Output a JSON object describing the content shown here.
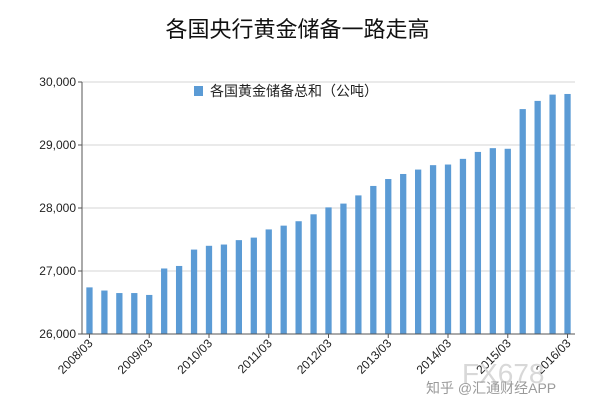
{
  "chart_data": {
    "type": "bar",
    "title": "各国央行黄金储备一路走高",
    "legend": {
      "label": "各国黄金储备总和（公吨）",
      "position": "top-left"
    },
    "ylim": [
      26000,
      30000
    ],
    "yticks": [
      26000,
      27000,
      28000,
      29000,
      30000
    ],
    "ytick_labels": [
      "26,000",
      "27,000",
      "28,000",
      "29,000",
      "30,000"
    ],
    "xtick_labels": [
      "2008/03",
      "2009/03",
      "2010/03",
      "2011/03",
      "2012/03",
      "2013/03",
      "2014/03",
      "2015/03",
      "2016/03"
    ],
    "xtick_every": 4,
    "bar_color": "#5b9bd5",
    "values": [
      26740,
      26690,
      26650,
      26650,
      26620,
      27040,
      27080,
      27340,
      27400,
      27420,
      27490,
      27530,
      27660,
      27720,
      27790,
      27900,
      28010,
      28070,
      28200,
      28350,
      28460,
      28540,
      28610,
      28680,
      28690,
      28780,
      28890,
      28950,
      28940,
      29570,
      29700,
      29800,
      29810
    ]
  },
  "watermark": {
    "brand": "知乎 @汇通财经APP",
    "code": "FX678"
  }
}
